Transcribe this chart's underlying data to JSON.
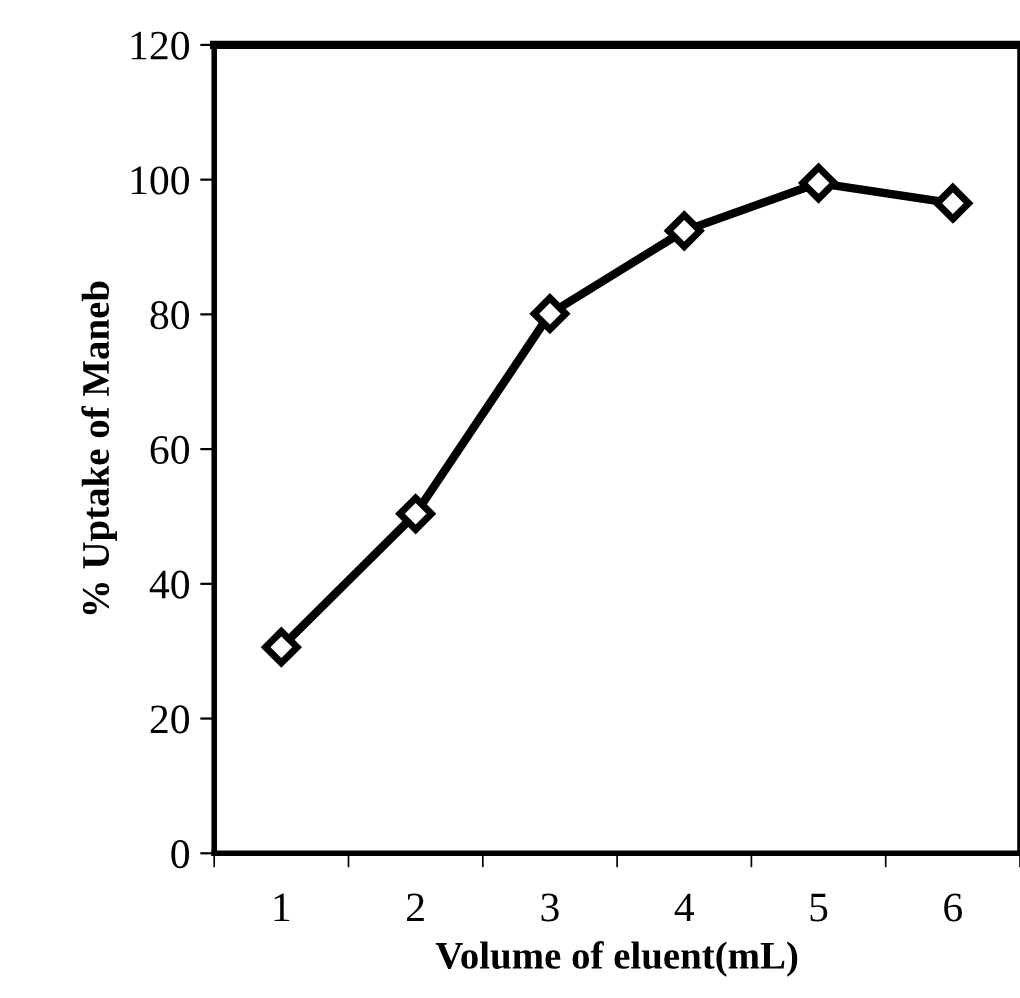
{
  "chart_data": {
    "type": "line",
    "xlabel": "Volume of eluent(mL)",
    "ylabel": "% Uptake of Maneb",
    "categories": [
      "1",
      "2",
      "3",
      "4",
      "5",
      "6"
    ],
    "series": [
      {
        "color": "#000000",
        "values": [
          30.6,
          50.4,
          80.1,
          92.4,
          99.5,
          96.5
        ]
      }
    ],
    "ylim": [
      0,
      120
    ],
    "yticks": [
      0,
      20,
      40,
      60,
      80,
      100,
      120
    ],
    "grid": false,
    "legend": false,
    "marker": "diamond",
    "line_style": "solid"
  }
}
